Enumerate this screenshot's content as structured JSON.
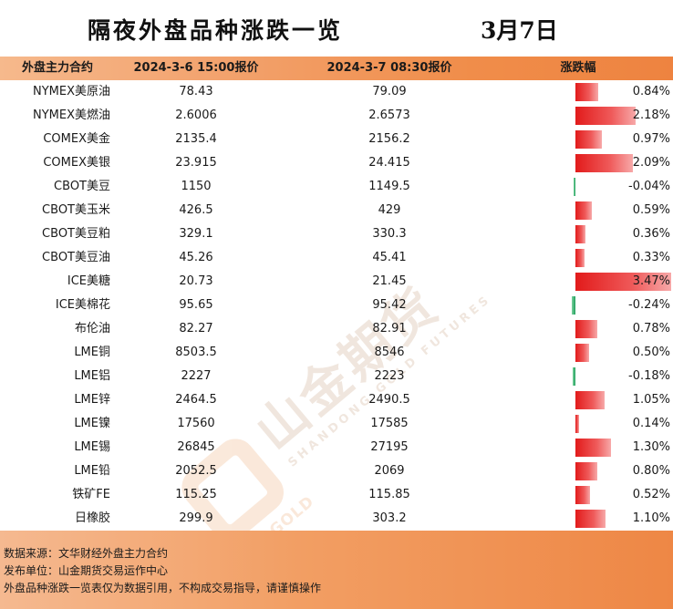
{
  "title": "隔夜外盘品种涨跌一览",
  "date": "3月7日",
  "headers": [
    "外盘主力合约",
    "2024-3-6 15:00报价",
    "2024-3-7 08:30报价",
    "涨跌幅"
  ],
  "rows": [
    {
      "name": "NYMEX美原油",
      "prev": "78.43",
      "curr": "79.09",
      "change": "0.84%",
      "change_value": 0.84
    },
    {
      "name": "NYMEX美燃油",
      "prev": "2.6006",
      "curr": "2.6573",
      "change": "2.18%",
      "change_value": 2.18
    },
    {
      "name": "COMEX美金",
      "prev": "2135.4",
      "curr": "2156.2",
      "change": "0.97%",
      "change_value": 0.97
    },
    {
      "name": "COMEX美银",
      "prev": "23.915",
      "curr": "24.415",
      "change": "2.09%",
      "change_value": 2.09
    },
    {
      "name": "CBOT美豆",
      "prev": "1150",
      "curr": "1149.5",
      "change": "-0.04%",
      "change_value": -0.04
    },
    {
      "name": "CBOT美玉米",
      "prev": "426.5",
      "curr": "429",
      "change": "0.59%",
      "change_value": 0.59
    },
    {
      "name": "CBOT美豆粕",
      "prev": "329.1",
      "curr": "330.3",
      "change": "0.36%",
      "change_value": 0.36
    },
    {
      "name": "CBOT美豆油",
      "prev": "45.26",
      "curr": "45.41",
      "change": "0.33%",
      "change_value": 0.33
    },
    {
      "name": "ICE美糖",
      "prev": "20.73",
      "curr": "21.45",
      "change": "3.47%",
      "change_value": 3.47
    },
    {
      "name": "ICE美棉花",
      "prev": "95.65",
      "curr": "95.42",
      "change": "-0.24%",
      "change_value": -0.24
    },
    {
      "name": "布伦油",
      "prev": "82.27",
      "curr": "82.91",
      "change": "0.78%",
      "change_value": 0.78
    },
    {
      "name": "LME铜",
      "prev": "8503.5",
      "curr": "8546",
      "change": "0.50%",
      "change_value": 0.5
    },
    {
      "name": "LME铝",
      "prev": "2227",
      "curr": "2223",
      "change": "-0.18%",
      "change_value": -0.18
    },
    {
      "name": "LME锌",
      "prev": "2464.5",
      "curr": "2490.5",
      "change": "1.05%",
      "change_value": 1.05
    },
    {
      "name": "LME镍",
      "prev": "17560",
      "curr": "17585",
      "change": "0.14%",
      "change_value": 0.14
    },
    {
      "name": "LME锡",
      "prev": "26845",
      "curr": "27195",
      "change": "1.30%",
      "change_value": 1.3
    },
    {
      "name": "LME铅",
      "prev": "2052.5",
      "curr": "2069",
      "change": "0.80%",
      "change_value": 0.8
    },
    {
      "name": "铁矿FE",
      "prev": "115.25",
      "curr": "115.85",
      "change": "0.52%",
      "change_value": 0.52
    },
    {
      "name": "日橡胶",
      "prev": "299.9",
      "curr": "303.2",
      "change": "1.10%",
      "change_value": 1.1
    }
  ],
  "watermark": {
    "main": "山金期货",
    "sub": "SHANDONG GOLD FUTURES",
    "brand": "SD-GOLD"
  },
  "footer": {
    "line1": "数据来源：文华财经外盘主力合约",
    "line2": "发布单位：山金期货交易运作中心",
    "line3": "外盘品种涨跌一览表仅为数据引用，不构成交易指导，请谨慎操作"
  },
  "colors": {
    "up": "#e21b1b",
    "down": "#1e9e5b",
    "accent": "#ee8340"
  }
}
